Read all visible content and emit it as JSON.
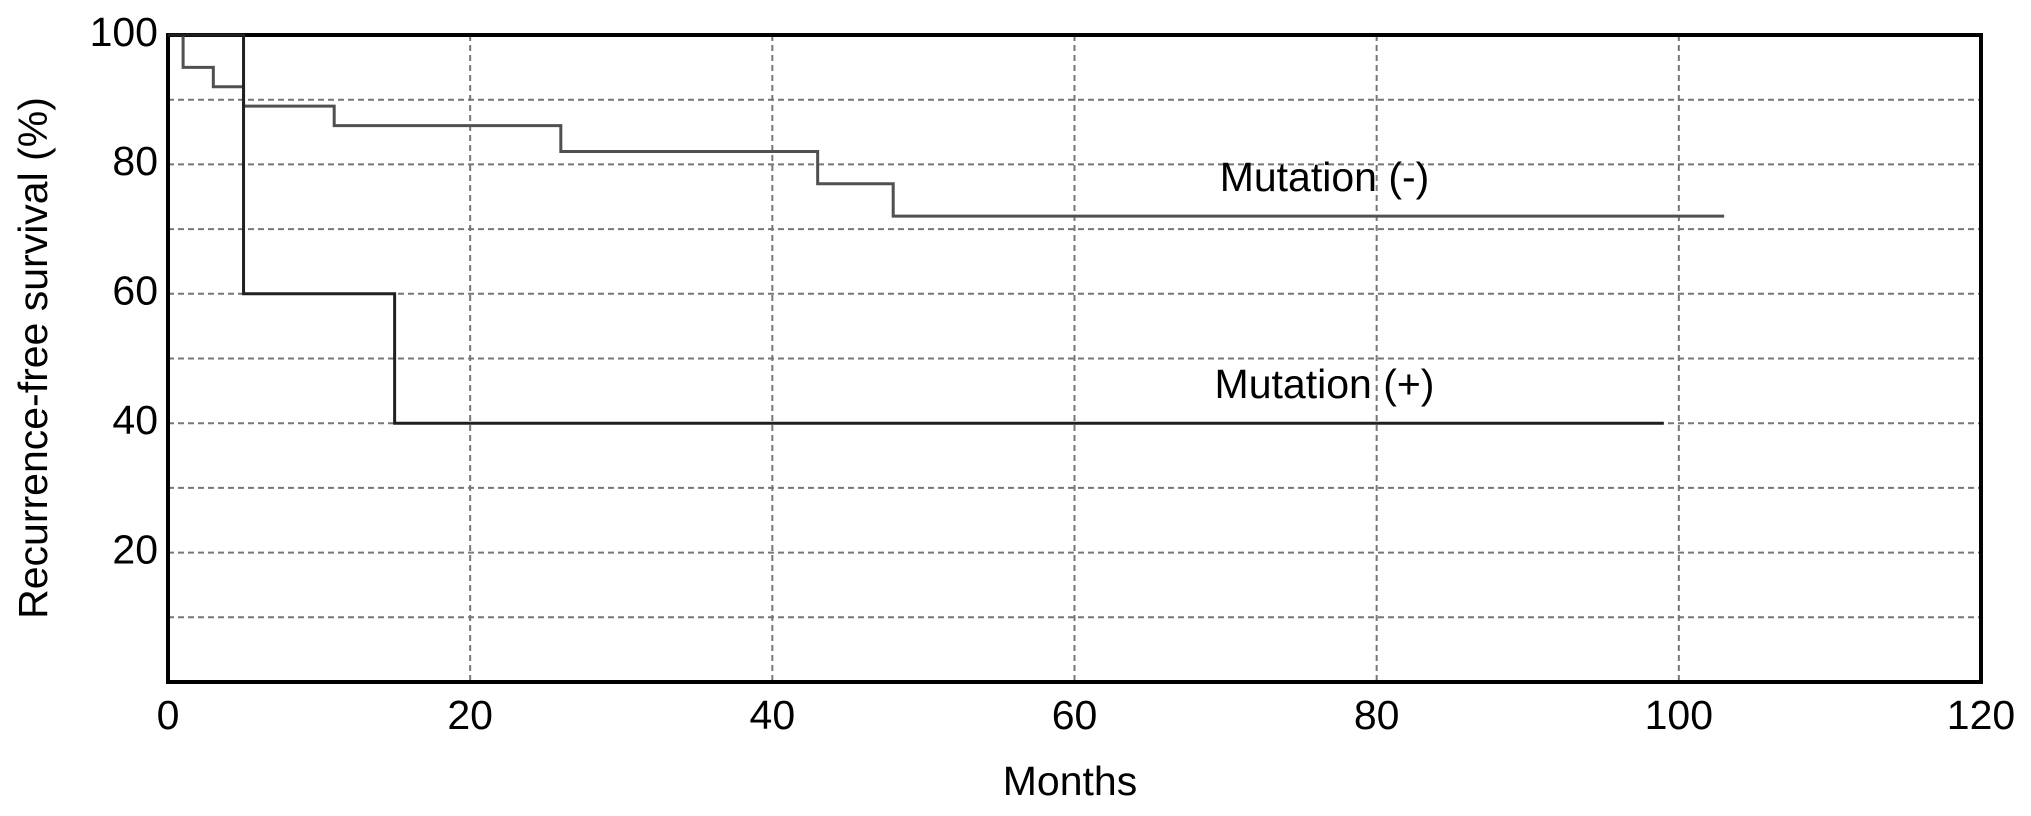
{
  "chart_data": {
    "type": "step",
    "x_label": "Months",
    "y_label": "Recurrence-free survival (%)",
    "series": [
      {
        "name": "Mutation (-)",
        "color": "#505050",
        "x": [
          0,
          1,
          3,
          5,
          11,
          26,
          43,
          48,
          103
        ],
        "values": [
          100,
          95,
          92,
          89,
          86,
          82,
          77,
          72,
          72
        ]
      },
      {
        "name": "Mutation (+)",
        "color": "#202020",
        "x": [
          0,
          5,
          15,
          99
        ],
        "values": [
          100,
          60,
          40,
          40
        ]
      }
    ],
    "xlim": [
      0,
      120
    ],
    "xticks": [
      0,
      20,
      40,
      60,
      80,
      100,
      120
    ],
    "ylim": [
      0,
      100
    ],
    "yticks": [
      20,
      40,
      60,
      80,
      100
    ],
    "grid": true,
    "minor_grid": true
  }
}
